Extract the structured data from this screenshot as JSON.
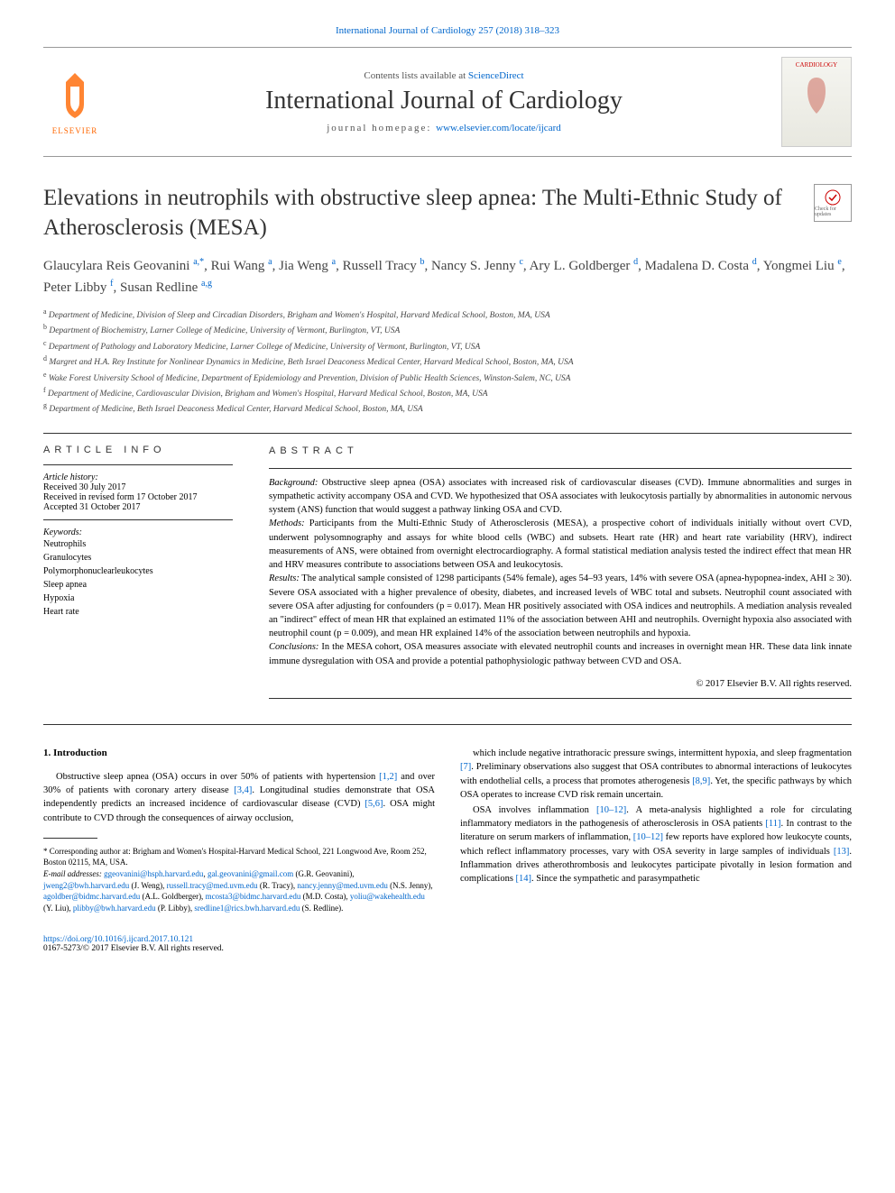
{
  "topcite": "International Journal of Cardiology 257 (2018) 318–323",
  "masthead": {
    "contents_prefix": "Contents lists available at ",
    "contents_link": "ScienceDirect",
    "journal_name": "International Journal of Cardiology",
    "homepage_prefix": "journal homepage: ",
    "homepage_link": "www.elsevier.com/locate/ijcard",
    "elsevier_label": "ELSEVIER",
    "cover_label": "CARDIOLOGY"
  },
  "article_title": "Elevations in neutrophils with obstructive sleep apnea: The Multi-Ethnic Study of Atherosclerosis (MESA)",
  "check_label": "Check for updates",
  "authors_html": "Glaucylara Reis Geovanini <sup>a,*</sup>, Rui Wang <sup>a</sup>, Jia Weng <sup>a</sup>, Russell Tracy <sup>b</sup>, Nancy S. Jenny <sup>c</sup>, Ary L. Goldberger <sup>d</sup>, Madalena D. Costa <sup>d</sup>, Yongmei Liu <sup>e</sup>, Peter Libby <sup>f</sup>, Susan Redline <sup>a,g</sup>",
  "affiliations": [
    {
      "s": "a",
      "t": "Department of Medicine, Division of Sleep and Circadian Disorders, Brigham and Women's Hospital, Harvard Medical School, Boston, MA, USA"
    },
    {
      "s": "b",
      "t": "Department of Biochemistry, Larner College of Medicine, University of Vermont, Burlington, VT, USA"
    },
    {
      "s": "c",
      "t": "Department of Pathology and Laboratory Medicine, Larner College of Medicine, University of Vermont, Burlington, VT, USA"
    },
    {
      "s": "d",
      "t": "Margret and H.A. Rey Institute for Nonlinear Dynamics in Medicine, Beth Israel Deaconess Medical Center, Harvard Medical School, Boston, MA, USA"
    },
    {
      "s": "e",
      "t": "Wake Forest University School of Medicine, Department of Epidemiology and Prevention, Division of Public Health Sciences, Winston-Salem, NC, USA"
    },
    {
      "s": "f",
      "t": "Department of Medicine, Cardiovascular Division, Brigham and Women's Hospital, Harvard Medical School, Boston, MA, USA"
    },
    {
      "s": "g",
      "t": "Department of Medicine, Beth Israel Deaconess Medical Center, Harvard Medical School, Boston, MA, USA"
    }
  ],
  "artinfo": {
    "heading": "ARTICLE INFO",
    "hist_label": "Article history:",
    "received": "Received 30 July 2017",
    "revised": "Received in revised form 17 October 2017",
    "accepted": "Accepted 31 October 2017",
    "kw_label": "Keywords:",
    "keywords": [
      "Neutrophils",
      "Granulocytes",
      "Polymorphonuclearleukocytes",
      "Sleep apnea",
      "Hypoxia",
      "Heart rate"
    ]
  },
  "abstract": {
    "heading": "ABSTRACT",
    "background_label": "Background:",
    "background": " Obstructive sleep apnea (OSA) associates with increased risk of cardiovascular diseases (CVD). Immune abnormalities and surges in sympathetic activity accompany OSA and CVD. We hypothesized that OSA associates with leukocytosis partially by abnormalities in autonomic nervous system (ANS) function that would suggest a pathway linking OSA and CVD.",
    "methods_label": "Methods:",
    "methods": " Participants from the Multi-Ethnic Study of Atherosclerosis (MESA), a prospective cohort of individuals initially without overt CVD, underwent polysomnography and assays for white blood cells (WBC) and subsets. Heart rate (HR) and heart rate variability (HRV), indirect measurements of ANS, were obtained from overnight electrocardiography. A formal statistical mediation analysis tested the indirect effect that mean HR and HRV measures contribute to associations between OSA and leukocytosis.",
    "results_label": "Results:",
    "results": " The analytical sample consisted of 1298 participants (54% female), ages 54–93 years, 14% with severe OSA (apnea-hypopnea-index, AHI ≥ 30). Severe OSA associated with a higher prevalence of obesity, diabetes, and increased levels of WBC total and subsets. Neutrophil count associated with severe OSA after adjusting for confounders (p = 0.017). Mean HR positively associated with OSA indices and neutrophils. A mediation analysis revealed an \"indirect\" effect of mean HR that explained an estimated 11% of the association between AHI and neutrophils. Overnight hypoxia also associated with neutrophil count (p = 0.009), and mean HR explained 14% of the association between neutrophils and hypoxia.",
    "conclusions_label": "Conclusions:",
    "conclusions": " In the MESA cohort, OSA measures associate with elevated neutrophil counts and increases in overnight mean HR. These data link innate immune dysregulation with OSA and provide a potential pathophysiologic pathway between CVD and OSA.",
    "copyright": "© 2017 Elsevier B.V. All rights reserved."
  },
  "intro": {
    "heading": "1. Introduction",
    "p1a": "Obstructive sleep apnea (OSA) occurs in over 50% of patients with hypertension ",
    "r1": "[1,2]",
    "p1b": " and over 30% of patients with coronary artery disease ",
    "r2": "[3,4]",
    "p1c": ". Longitudinal studies demonstrate that OSA independently predicts an increased incidence of cardiovascular disease (CVD) ",
    "r3": "[5,6]",
    "p1d": ". OSA might contribute to CVD through the consequences of airway occlusion,",
    "p2a": "which include negative intrathoracic pressure swings, intermittent hypoxia, and sleep fragmentation ",
    "r4": "[7]",
    "p2b": ". Preliminary observations also suggest that OSA contributes to abnormal interactions of leukocytes with endothelial cells, a process that promotes atherogenesis ",
    "r5": "[8,9]",
    "p2c": ". Yet, the specific pathways by which OSA operates to increase CVD risk remain uncertain.",
    "p3a": "OSA involves inflammation ",
    "r6": "[10–12]",
    "p3b": ". A meta-analysis highlighted a role for circulating inflammatory mediators in the pathogenesis of atherosclerosis in OSA patients ",
    "r7": "[11]",
    "p3c": ". In contrast to the literature on serum markers of inflammation, ",
    "r8": "[10–12]",
    "p3d": " few reports have explored how leukocyte counts, which reflect inflammatory processes, vary with OSA severity in large samples of individuals ",
    "r9": "[13]",
    "p3e": ". Inflammation drives atherothrombosis and leukocytes participate pivotally in lesion formation and complications ",
    "r10": "[14]",
    "p3f": ". Since the sympathetic and parasympathetic"
  },
  "footnotes": {
    "corr_label": "* Corresponding author at: Brigham and Women's Hospital-Harvard Medical School, 221 Longwood Ave, Room 252, Boston 02115, MA, USA.",
    "email_label": "E-mail addresses:",
    "emails": " ggeovanini@hsph.harvard.edu, gal.geovanini@gmail.com (G.R. Geovanini), jweng2@bwh.harvard.edu (J. Weng), russell.tracy@med.uvm.edu (R. Tracy), nancy.jenny@med.uvm.edu (N.S. Jenny), agoldber@bidmc.harvard.edu (A.L. Goldberger), mcosta3@bidmc.harvard.edu (M.D. Costa), yoliu@wakehealth.edu (Y. Liu), plibby@bwh.harvard.edu (P. Libby), sredline1@rics.bwh.harvard.edu (S. Redline)."
  },
  "footer": {
    "doi": "https://doi.org/10.1016/j.ijcard.2017.10.121",
    "issn": "0167-5273/© 2017 Elsevier B.V. All rights reserved."
  },
  "colors": {
    "link": "#0066cc",
    "elsevier": "#ff6600",
    "text": "#000000",
    "rule": "#333333"
  }
}
